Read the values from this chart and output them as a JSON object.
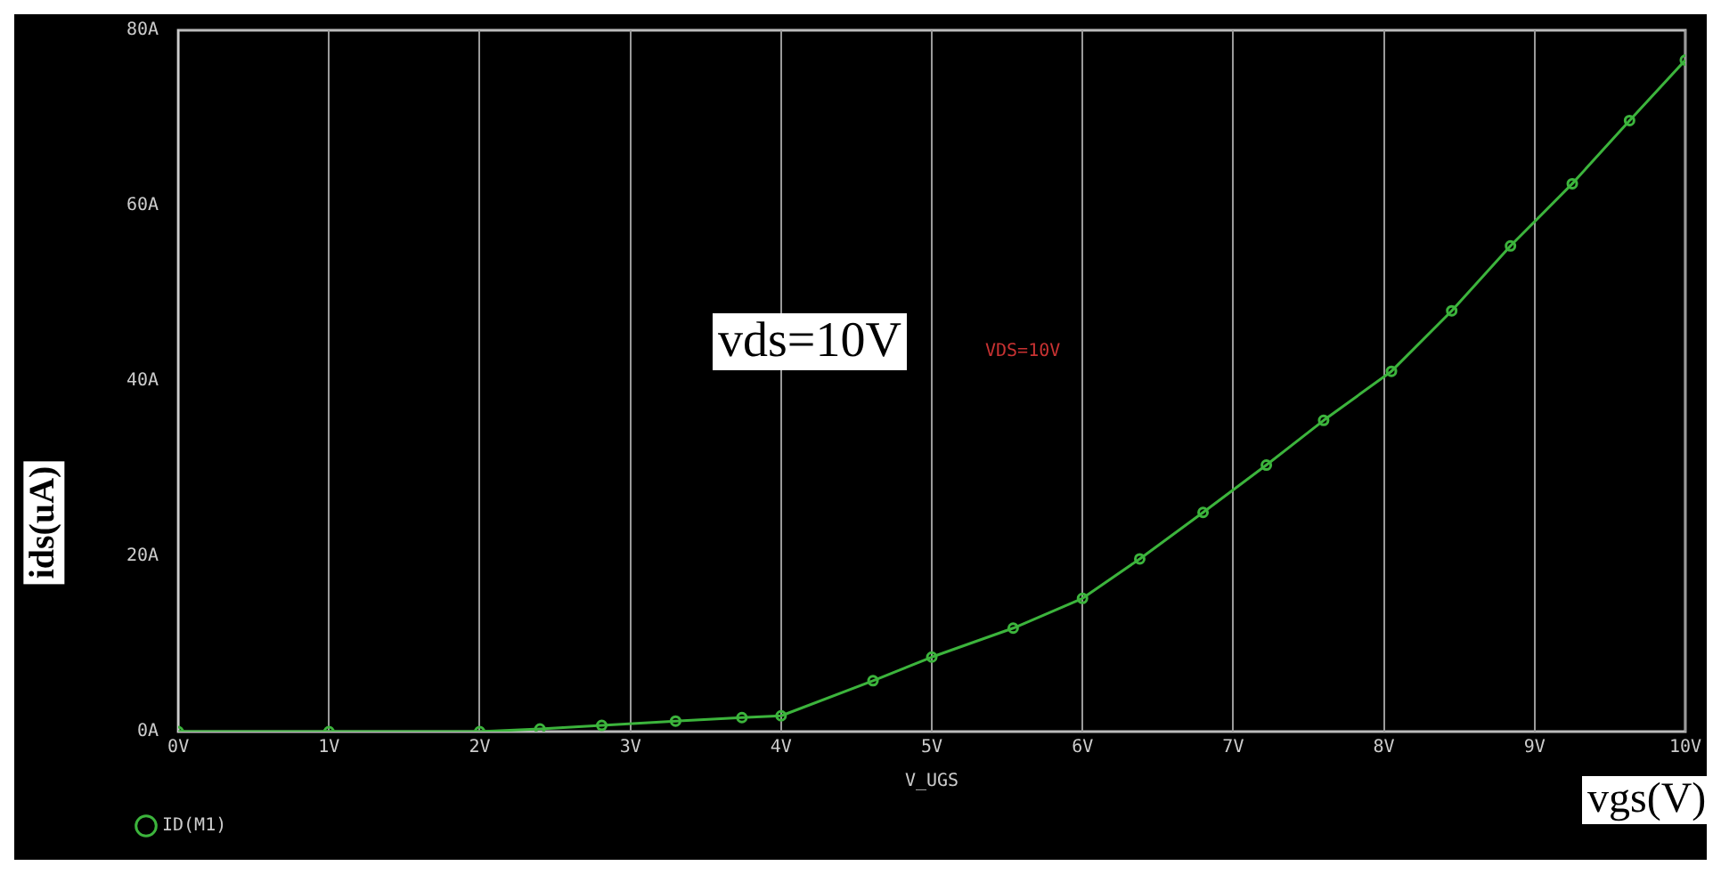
{
  "chart_data": {
    "type": "line",
    "ylabel": "ids(uA)",
    "xlabel": "V_UGS",
    "annotations": [
      "vds=10V",
      "VDS=10V",
      "vgs(V)"
    ],
    "series": [
      {
        "name": "ID(M1)",
        "color": "#3cb43c",
        "x": [
          0,
          1,
          2,
          2.4,
          2.81,
          3.3,
          3.74,
          4.0,
          4.61,
          5.0,
          5.54,
          6.0,
          6.38,
          6.8,
          7.22,
          7.6,
          8.05,
          8.45,
          8.84,
          9.25,
          9.63,
          10
        ],
        "values": [
          0,
          0,
          0,
          0.3,
          0.7,
          1.2,
          1.6,
          1.8,
          5.8,
          8.5,
          11.8,
          15.2,
          19.7,
          25,
          30.4,
          35.5,
          41.1,
          48,
          55.4,
          62.5,
          69.7,
          76.6
        ]
      }
    ],
    "xlim": [
      0,
      10
    ],
    "xticks": [
      {
        "value": 0,
        "label": "0V"
      },
      {
        "value": 1,
        "label": "1V"
      },
      {
        "value": 2,
        "label": "2V"
      },
      {
        "value": 3,
        "label": "3V"
      },
      {
        "value": 4,
        "label": "4V"
      },
      {
        "value": 5,
        "label": "5V"
      },
      {
        "value": 6,
        "label": "6V"
      },
      {
        "value": 7,
        "label": "7V"
      },
      {
        "value": 8,
        "label": "8V"
      },
      {
        "value": 9,
        "label": "9V"
      },
      {
        "value": 10,
        "label": "10V"
      }
    ],
    "ylim": [
      0,
      80
    ],
    "yticks": [
      {
        "value": 0,
        "label": "0A"
      },
      {
        "value": 20,
        "label": "20A"
      },
      {
        "value": 40,
        "label": "40A"
      },
      {
        "value": 60,
        "label": "60A"
      },
      {
        "value": 80,
        "label": "80A"
      }
    ],
    "grid": "x",
    "legend": "bottom left",
    "marker": "circle",
    "line_style": "solid"
  }
}
